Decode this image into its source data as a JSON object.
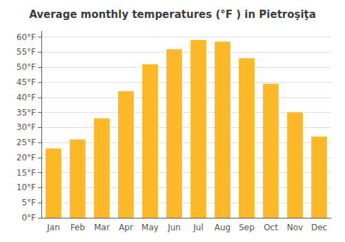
{
  "chart_data": {
    "type": "bar",
    "title": "Average monthly temperatures (°F ) in Pietroşiţa",
    "categories": [
      "Jan",
      "Feb",
      "Mar",
      "Apr",
      "May",
      "Jun",
      "Jul",
      "Aug",
      "Sep",
      "Oct",
      "Nov",
      "Dec"
    ],
    "values": [
      23,
      26,
      33,
      42,
      51,
      56,
      59,
      58.5,
      53,
      44.5,
      35,
      27
    ],
    "color": "#FDB827",
    "ylim": [
      0,
      62
    ],
    "yticks": [
      {
        "value": 0,
        "label": "0°F"
      },
      {
        "value": 5,
        "label": "5°F"
      },
      {
        "value": 10,
        "label": "10°F"
      },
      {
        "value": 15,
        "label": "15°F"
      },
      {
        "value": 20,
        "label": "20°F"
      },
      {
        "value": 25,
        "label": "25°F"
      },
      {
        "value": 30,
        "label": "30°F"
      },
      {
        "value": 35,
        "label": "35°F"
      },
      {
        "value": 40,
        "label": "40°F"
      },
      {
        "value": 45,
        "label": "45°F"
      },
      {
        "value": 50,
        "label": "50°F"
      },
      {
        "value": 55,
        "label": "55°F"
      },
      {
        "value": 60,
        "label": "60°F"
      }
    ],
    "grid": true
  }
}
